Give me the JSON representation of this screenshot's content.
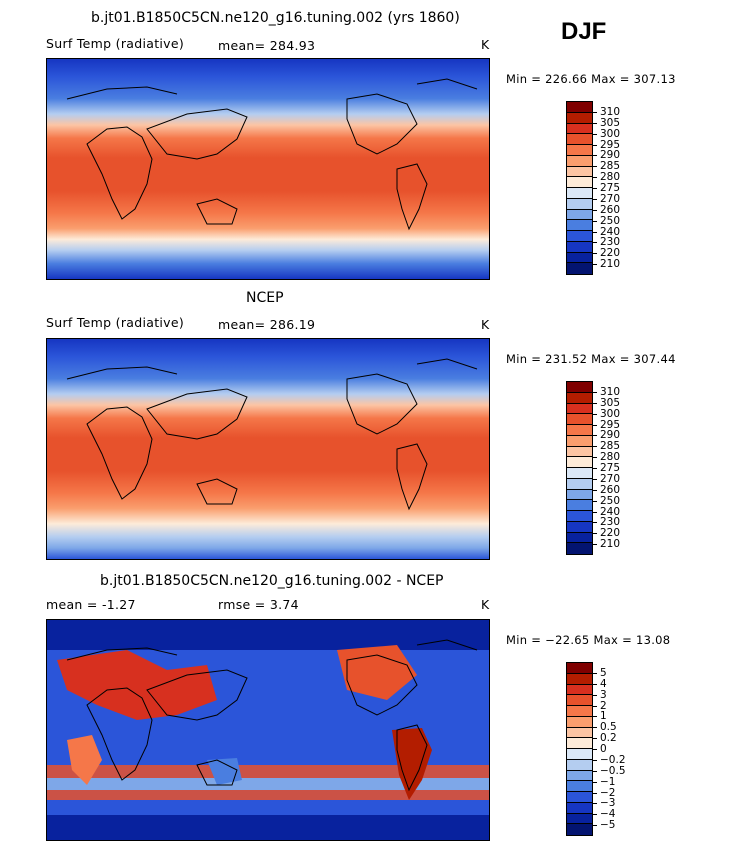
{
  "season": "DJF",
  "panels": [
    {
      "title": "b.jt01.B1850C5CN.ne120_g16.tuning.002 (yrs 1860)",
      "left_text": "Surf Temp (radiative)",
      "mid_text": "mean= 284.93",
      "unit": "K",
      "minmax": "Min = 226.66 Max = 307.13"
    },
    {
      "title": "NCEP",
      "left_text": "Surf Temp (radiative)",
      "mid_text": "mean= 286.19",
      "unit": "K",
      "minmax": "Min = 231.52 Max = 307.44"
    },
    {
      "title": "b.jt01.B1850C5CN.ne120_g16.tuning.002 - NCEP",
      "left_text": "mean =  -1.27",
      "mid_text": "rmse =   3.74",
      "unit": "K",
      "minmax": "Min = −22.65 Max =  13.08"
    }
  ],
  "colorbars": {
    "temperature": {
      "labels": [
        "310",
        "305",
        "300",
        "295",
        "290",
        "285",
        "280",
        "275",
        "270",
        "260",
        "250",
        "240",
        "230",
        "220",
        "210"
      ],
      "colors": [
        "#7f0000",
        "#b31d00",
        "#d7301f",
        "#e7522c",
        "#f57749",
        "#fa9e6e",
        "#fcc5a4",
        "#fdebd9",
        "#dbe8f7",
        "#b4cdf0",
        "#7ea7e8",
        "#4a7ee0",
        "#2b55d9",
        "#1636c2",
        "#08229e",
        "#031470"
      ]
    },
    "difference": {
      "labels": [
        "5",
        "4",
        "3",
        "2",
        "1",
        "0.5",
        "0.2",
        "0",
        "−0.2",
        "−0.5",
        "−1",
        "−2",
        "−3",
        "−4",
        "−5"
      ],
      "colors": [
        "#7f0000",
        "#b31d00",
        "#d7301f",
        "#e7522c",
        "#f57749",
        "#fa9e6e",
        "#fcc5a4",
        "#fdebd9",
        "#dbe8f7",
        "#b4cdf0",
        "#7ea7e8",
        "#4a7ee0",
        "#2b55d9",
        "#1636c2",
        "#08229e",
        "#031470"
      ]
    }
  }
}
